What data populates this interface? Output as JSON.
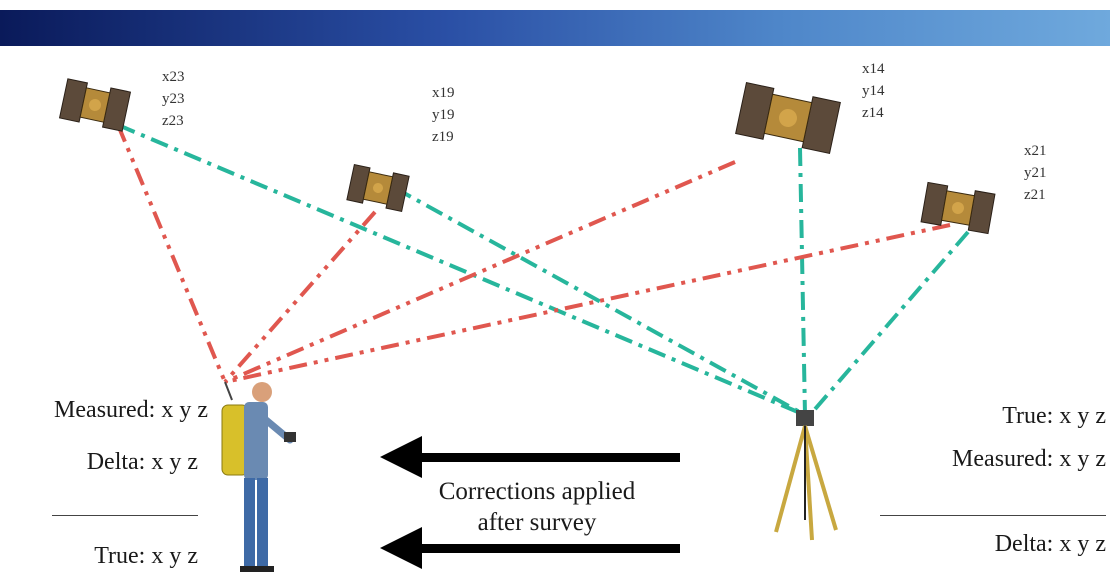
{
  "satellites": [
    {
      "id": "23",
      "x": "x23",
      "y": "y23",
      "z": "z23"
    },
    {
      "id": "19",
      "x": "x19",
      "y": "y19",
      "z": "z19"
    },
    {
      "id": "14",
      "x": "x14",
      "y": "y14",
      "z": "z14"
    },
    {
      "id": "21",
      "x": "x21",
      "y": "y21",
      "z": "z21"
    }
  ],
  "rover": {
    "measured": "Measured: x y z",
    "delta": "Delta: x y z",
    "true": "True: x y z"
  },
  "base": {
    "true": "True: x y z",
    "measured": "Measured: x y z",
    "delta": "Delta: x y z"
  },
  "corrections": {
    "line1": "Corrections applied",
    "line2": "after survey"
  },
  "colors": {
    "banner_start": "#0a1a5a",
    "banner_end": "#6fa9dd",
    "rover_signal": "#e0574f",
    "base_signal": "#27b69c",
    "arrow": "#000000"
  }
}
